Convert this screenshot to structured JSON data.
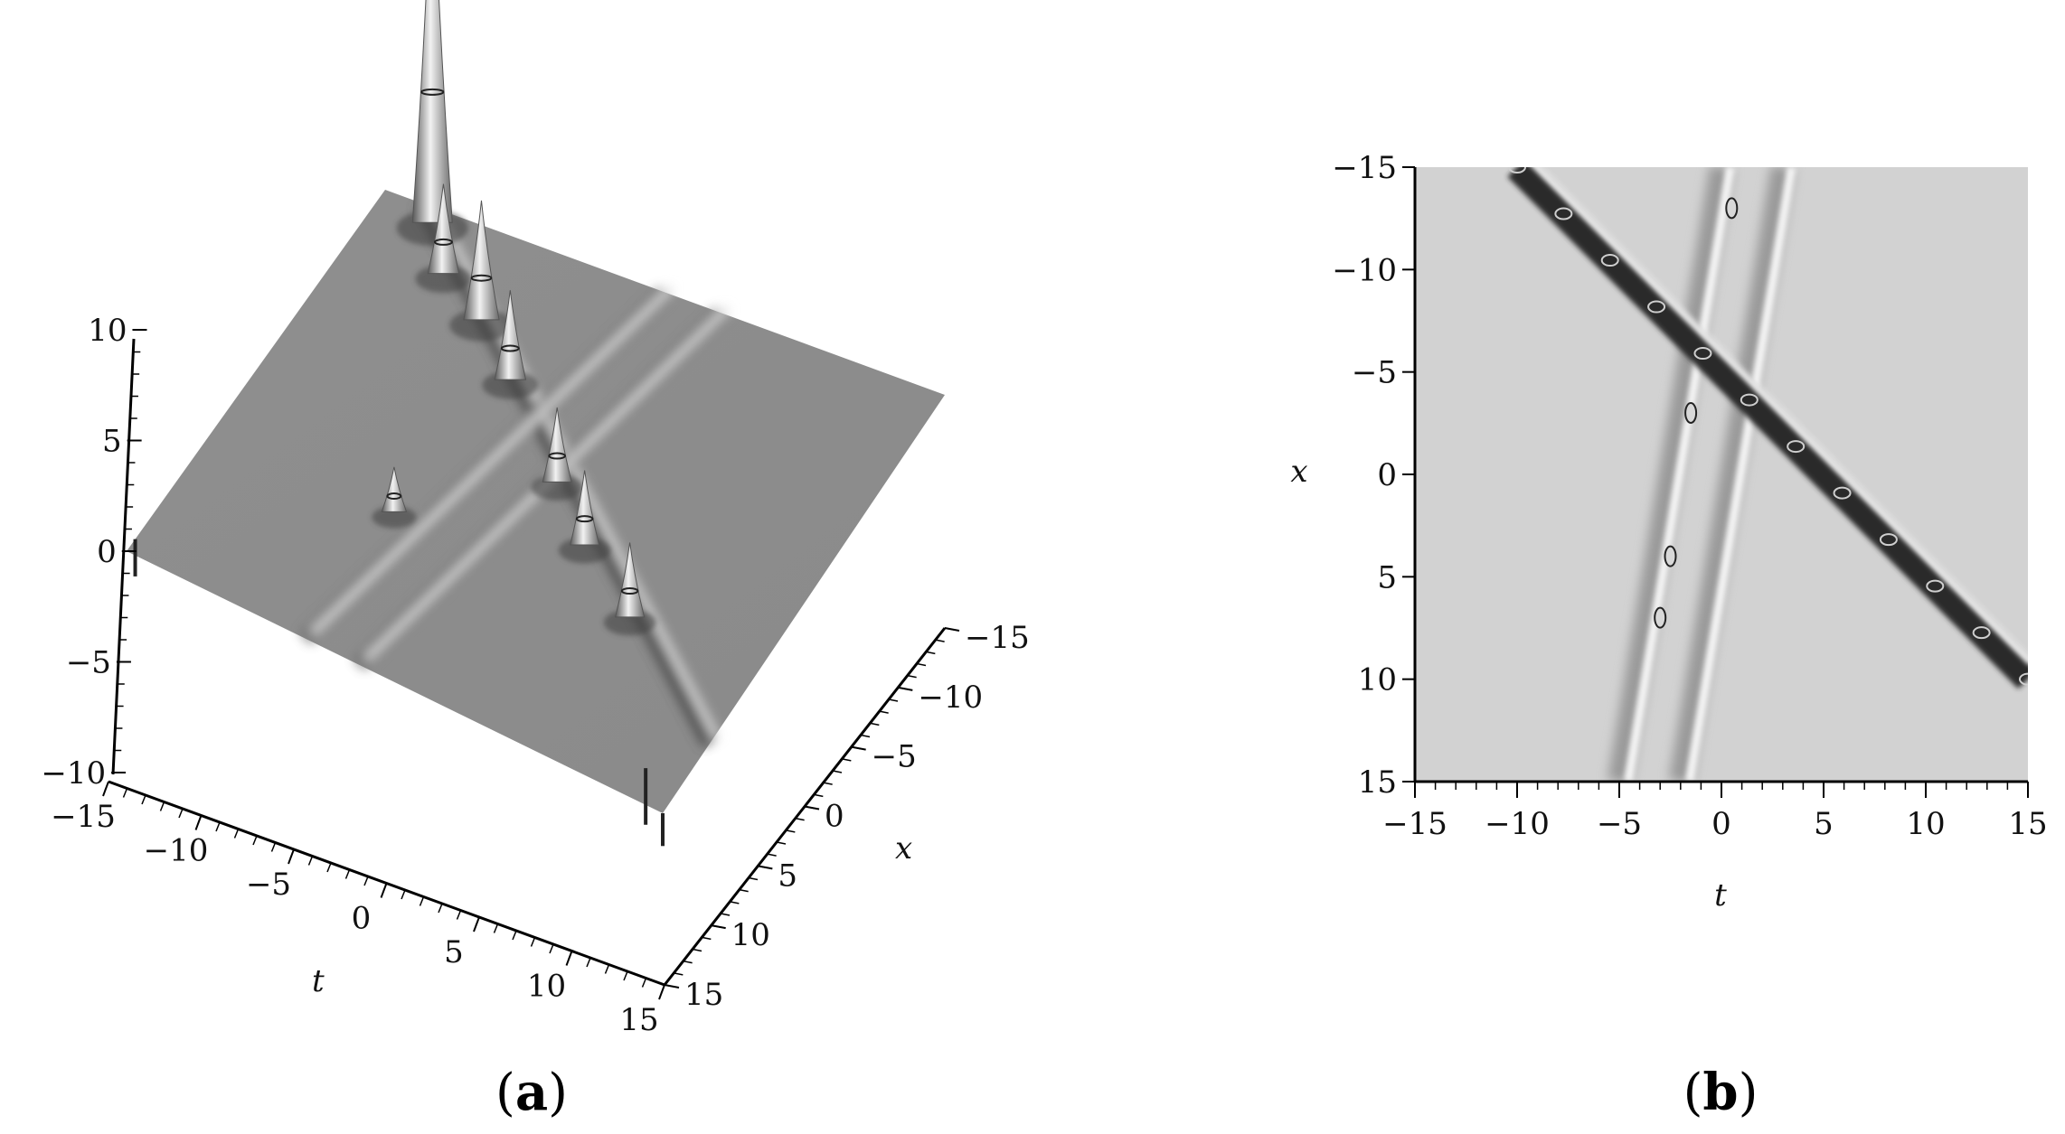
{
  "panels": [
    {
      "caption": "(a)",
      "caption_letter": "a"
    },
    {
      "caption": "(b)",
      "caption_letter": "b"
    }
  ],
  "chart_data": [
    {
      "type": "surface3d",
      "panel": "a",
      "xlabel": "t",
      "ylabel": "x",
      "zlabel": "",
      "t_ticks": [
        -15,
        -10,
        -5,
        0,
        5,
        10,
        15
      ],
      "x_ticks": [
        -15,
        -10,
        -5,
        0,
        5,
        10,
        15
      ],
      "z_ticks": [
        -10,
        -5,
        0,
        5,
        10
      ],
      "xlim": [
        -15,
        15
      ],
      "ylim": [
        -15,
        15
      ],
      "zlim": [
        -10,
        10
      ],
      "peaks": [
        {
          "t": -12,
          "x": -14,
          "z": 25
        },
        {
          "t": -10,
          "x": -11,
          "z": 6
        },
        {
          "t": -7,
          "x": -9,
          "z": 8
        },
        {
          "t": -4,
          "x": -6,
          "z": 6
        },
        {
          "t": 1,
          "x": -1,
          "z": 5
        },
        {
          "t": 4,
          "x": 2,
          "z": 5
        },
        {
          "t": 8,
          "x": 5,
          "z": 5
        },
        {
          "t": -5,
          "x": 5,
          "z": 3
        }
      ]
    },
    {
      "type": "heatmap",
      "panel": "b",
      "xlabel": "t",
      "ylabel": "x",
      "xticks": [
        -15,
        -10,
        -5,
        0,
        5,
        10,
        15
      ],
      "yticks": [
        -15,
        -10,
        -5,
        0,
        5,
        10,
        15
      ],
      "xlim": [
        -15,
        15
      ],
      "ylim": [
        -15,
        15
      ],
      "y_inverted": true,
      "colormap": "grayscale",
      "bands": [
        {
          "from": {
            "t": -10,
            "x": -15
          },
          "to": {
            "t": 15,
            "x": 10
          }
        },
        {
          "from": {
            "t": -5,
            "x": 15
          },
          "to": {
            "t": 0,
            "x": -15
          }
        },
        {
          "from": {
            "t": -2,
            "x": 15
          },
          "to": {
            "t": 3,
            "x": -15
          }
        }
      ]
    }
  ]
}
